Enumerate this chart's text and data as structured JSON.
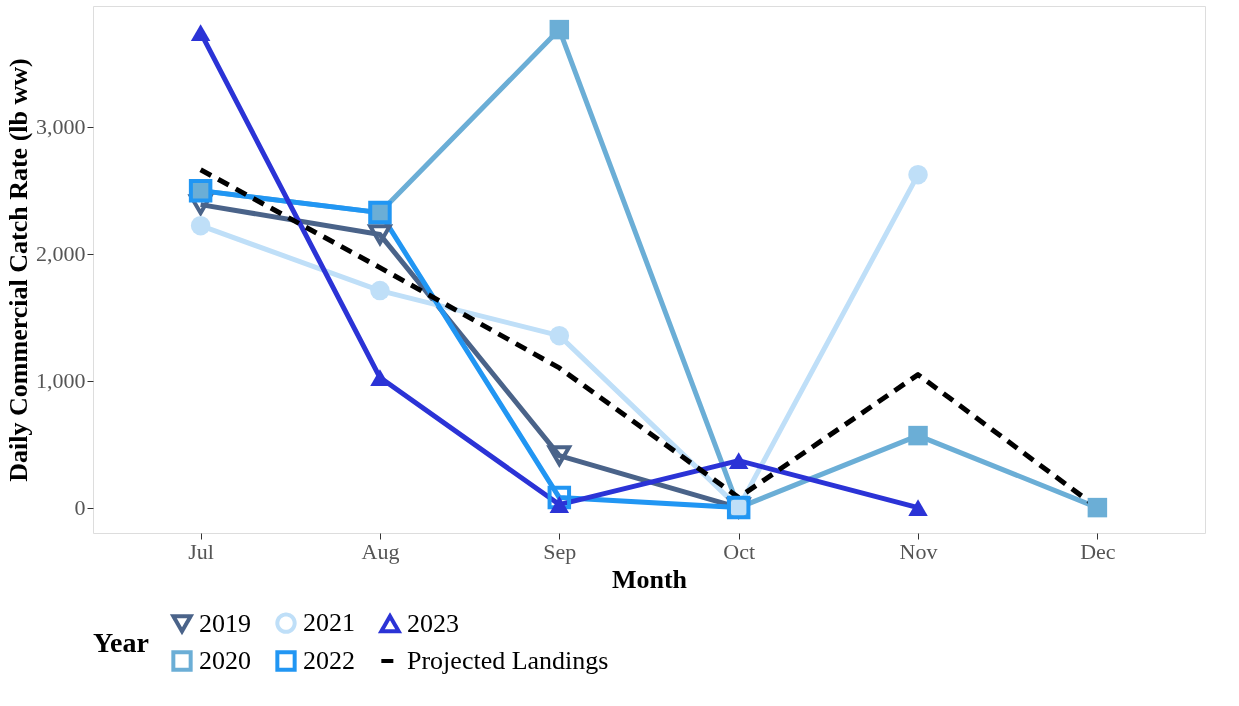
{
  "chart_data": {
    "type": "line",
    "xlabel": "Month",
    "ylabel": "Daily Commercial Catch Rate (lb ww)",
    "legend_title": "Year",
    "categories": [
      "Jul",
      "Aug",
      "Sep",
      "Oct",
      "Nov",
      "Dec"
    ],
    "ylim": [
      -200,
      3950
    ],
    "yticks": [
      0,
      {
        "value": 1000,
        "label": "1,000"
      },
      {
        "value": 2000,
        "label": "2,000"
      },
      {
        "value": 3000,
        "label": "3,000"
      }
    ],
    "grid": false,
    "legend": "bottom",
    "series": [
      {
        "name": "2019",
        "color": "#4a6389",
        "marker": "triangle-down-open",
        "line_style": "solid",
        "values": [
          2386,
          2150,
          409,
          0,
          null,
          null
        ]
      },
      {
        "name": "2020",
        "color": "#6baed6",
        "marker": "square",
        "line_style": "solid",
        "values": [
          2496,
          2323,
          3764,
          0,
          567,
          0
        ]
      },
      {
        "name": "2021",
        "color": "#bfdff8",
        "marker": "circle",
        "line_style": "solid",
        "values": [
          2220,
          1709,
          1354,
          0,
          2622,
          null
        ]
      },
      {
        "name": "2022",
        "color": "#2196f3",
        "marker": "square-open",
        "line_style": "solid",
        "values": [
          2496,
          2323,
          79,
          0,
          null,
          null
        ]
      },
      {
        "name": "2023",
        "color": "#2b33d6",
        "marker": "triangle",
        "line_style": "solid",
        "values": [
          3740,
          1024,
          24,
          370,
          0,
          null
        ]
      },
      {
        "name": "Projected Landings",
        "color": "#000000",
        "marker": "none",
        "line_style": "dashed",
        "values": [
          2661,
          1890,
          1100,
          80,
          1047,
          0
        ]
      }
    ]
  }
}
